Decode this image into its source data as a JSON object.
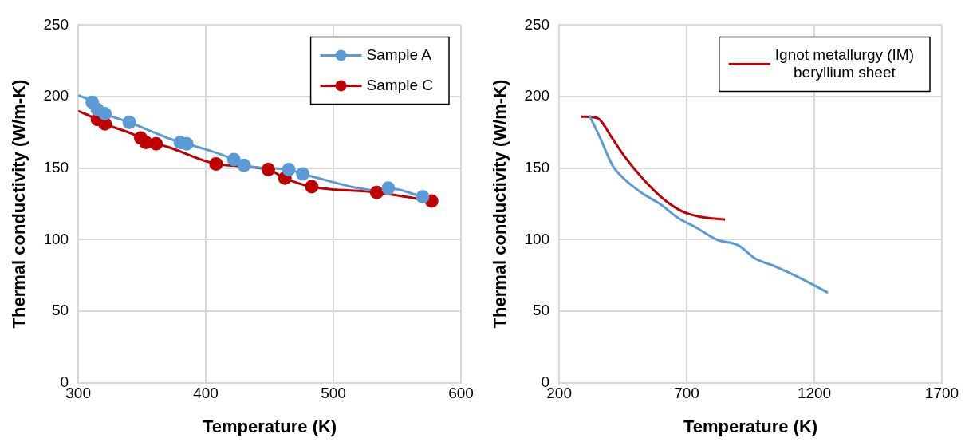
{
  "chart_data": [
    {
      "type": "scatter",
      "xlabel": "Temperature (K)",
      "ylabel": "Thermal conductivity (W/m-K)",
      "xlim": [
        300,
        600
      ],
      "xticks": [
        300,
        400,
        500,
        600
      ],
      "ylim": [
        0,
        250
      ],
      "yticks": [
        0,
        50,
        100,
        150,
        200,
        250
      ],
      "grid": true,
      "legend": "top right",
      "marker": "circle",
      "series": [
        {
          "name": "Sample A",
          "color": "#5b9bd5",
          "x": [
            311,
            315,
            321,
            340,
            380,
            385,
            422,
            430,
            465,
            476,
            541,
            543,
            570
          ],
          "values": [
            196,
            191,
            188,
            182,
            168,
            167,
            156,
            152,
            149,
            146,
            null,
            136,
            130
          ]
        },
        {
          "name": "Sample C",
          "color": "#c00000",
          "x": [
            315,
            321,
            349,
            353,
            361,
            408,
            449,
            462,
            483,
            534,
            577
          ],
          "values": [
            184,
            181,
            171,
            168,
            167,
            153,
            149,
            143,
            137,
            133,
            127
          ]
        },
        {
          "type": "line",
          "marker": "none",
          "color": "#5b9bd5",
          "x": [
            300,
            311,
            315,
            321,
            340,
            380,
            385,
            422,
            430,
            465,
            476,
            541,
            543,
            570
          ],
          "values": [
            201,
            196,
            191,
            188,
            182,
            168,
            167,
            156,
            152,
            149,
            146,
            134,
            136,
            130
          ]
        },
        {
          "type": "line",
          "marker": "none",
          "color": "#c00000",
          "x": [
            300,
            315,
            321,
            349,
            353,
            361,
            408,
            449,
            462,
            483,
            534,
            577
          ],
          "values": [
            190,
            184,
            181,
            171,
            168,
            167,
            153,
            149,
            143,
            137,
            133,
            127
          ]
        }
      ]
    },
    {
      "type": "line",
      "xlabel": "Temperature (K)",
      "ylabel": "Thermal conductivity (W/m-K)",
      "xlim": [
        200,
        1700
      ],
      "xticks": [
        200,
        700,
        1200,
        1700
      ],
      "ylim": [
        0,
        250
      ],
      "yticks": [
        0,
        50,
        100,
        150,
        200,
        250
      ],
      "grid": true,
      "legend": "top right",
      "marker": "none",
      "series": [
        {
          "color": "#5b9bd5",
          "x": [
            318,
            361,
            409,
            446,
            521,
            595,
            668,
            732,
            818,
            903,
            967,
            1051,
            1136,
            1253
          ],
          "values": [
            187,
            171,
            152,
            144,
            133,
            125,
            115,
            109,
            100,
            96,
            87,
            81,
            74,
            63
          ]
        },
        {
          "name": "Ignot metallurgy (IM)\nberyllium sheet",
          "color": "#c00000",
          "x": [
            287,
            350,
            404,
            457,
            531,
            605,
            680,
            754,
            850
          ],
          "values": [
            186,
            185,
            172,
            158,
            142,
            129,
            120,
            116,
            114
          ]
        }
      ]
    }
  ]
}
